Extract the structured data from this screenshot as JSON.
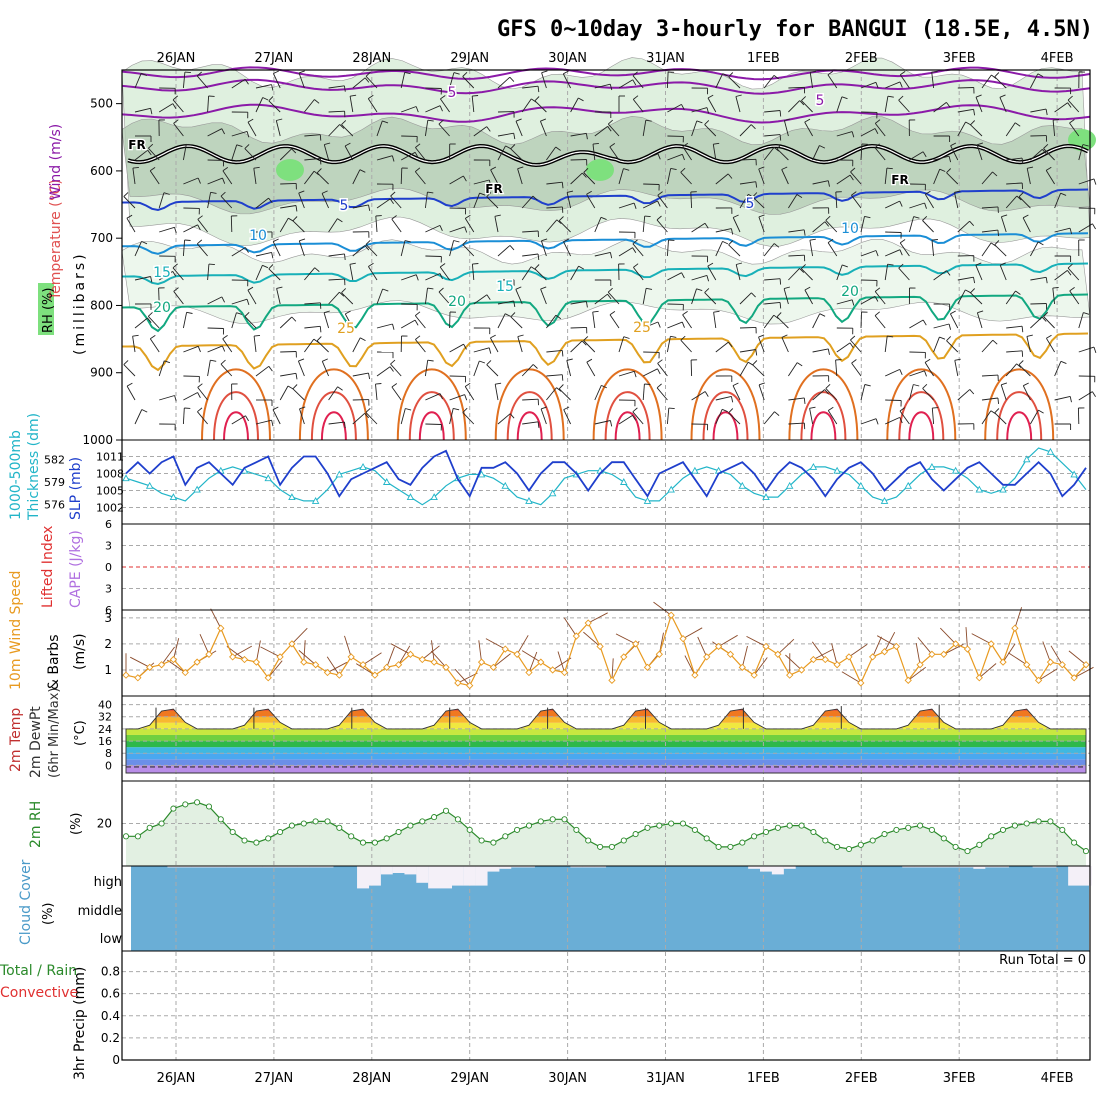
{
  "title": "GFS 0~10day 3-hourly for BANGUI (18.5E, 4.5N)",
  "dates": [
    "26JAN",
    "27JAN",
    "28JAN",
    "29JAN",
    "30JAN",
    "31JAN",
    "1FEB",
    "2FEB",
    "3FEB",
    "4FEB"
  ],
  "labels": {
    "upper": {
      "rh": "RH (%)",
      "temp": "Temperature (°C)",
      "wind": "Wind (m/s)",
      "pressure": "(millibars)",
      "fr": "FR"
    },
    "slp": {
      "thick1": "1000-500mb",
      "thick2": "Thickness (dm)",
      "slp": "SLP (mb)"
    },
    "cape": {
      "li": "Lifted Index",
      "cape": "CAPE (J/kg)"
    },
    "wind10": {
      "l1": "10m Wind Speed",
      "l2": "& Barbs",
      "unit": "(m/s)"
    },
    "temp2m": {
      "l1": "2m Temp",
      "l2": "2m DewPt",
      "l3": "(6hr Min/Max)",
      "unit": "(°C)"
    },
    "rh2m": {
      "l1": "2m RH",
      "unit": "(%)"
    },
    "cloud": {
      "l1": "Cloud Cover",
      "unit": "(%)",
      "high": "high",
      "middle": "middle",
      "low": "low"
    },
    "precip": {
      "l1": "Total / Rain",
      "l2": "Convective",
      "l3": "3hr Precip (mm)",
      "run_total": "Run Total = 0"
    }
  },
  "colors": {
    "wind_contour": "#8b1aa8",
    "freezing": "#000000",
    "slp": "#1f3fcc",
    "thickness": "#22b5c8",
    "wind10": "#e89a20",
    "rh2m": "#2b8a2b",
    "cloud": "#6aaed6",
    "rh_fill": "#7ee07e",
    "li": "#e03030",
    "cape": "#b070e0"
  },
  "chart_data": [
    {
      "type": "contour",
      "panel": "upper-air cross-section",
      "y_ticks": [
        500,
        600,
        700,
        800,
        900,
        1000
      ],
      "ylim": [
        1000,
        450
      ],
      "wind_contours": [
        5
      ],
      "temp_contours": [
        5,
        10,
        15,
        20,
        25
      ],
      "rh_contours": [
        30,
        60
      ]
    },
    {
      "type": "line",
      "panel": "slp-thickness",
      "slp_ticks": [
        1002,
        1005,
        1008,
        1011
      ],
      "thickness_ticks": [
        576,
        579,
        582
      ],
      "series": [
        {
          "name": "SLP (mb)",
          "values": [
            1008,
            1010,
            1008,
            1010,
            1011,
            1006,
            1009,
            1010,
            1008,
            1006,
            1009,
            1010,
            1011,
            1006,
            1009,
            1011,
            1011,
            1008,
            1004,
            1007,
            1008,
            1009,
            1010,
            1007,
            1006,
            1009,
            1011,
            1012,
            1007,
            1004,
            1009,
            1009,
            1010,
            1008,
            1005,
            1008,
            1010,
            1010,
            1008,
            1005,
            1008,
            1010,
            1010,
            1007,
            1004,
            1008,
            1009,
            1010,
            1007,
            1004,
            1008,
            1009,
            1010,
            1008,
            1005,
            1008,
            1010,
            1009,
            1007,
            1004,
            1007,
            1009,
            1010,
            1008,
            1005,
            1007,
            1009,
            1010,
            1007,
            1005,
            1007,
            1009,
            1010,
            1008,
            1006,
            1006,
            1008,
            1010,
            1008,
            1004,
            1006,
            1009
          ]
        },
        {
          "name": "1000-500mb Thickness (dm)",
          "values": [
            579.5,
            579.0,
            578.5,
            577.5,
            577.0,
            576.5,
            578.0,
            579.5,
            580.5,
            581.0,
            580.5,
            580.0,
            579.5,
            578.0,
            577.0,
            576.5,
            576.5,
            578.0,
            580.0,
            580.5,
            581.0,
            580.5,
            579.0,
            578.0,
            577.0,
            576.0,
            577.0,
            578.5,
            579.5,
            580.0,
            580.0,
            579.5,
            578.5,
            577.0,
            576.5,
            576.0,
            577.5,
            579.5,
            580.0,
            580.5,
            580.5,
            580.0,
            579.0,
            577.0,
            576.5,
            576.5,
            578.0,
            579.5,
            580.5,
            581.0,
            580.5,
            580.0,
            578.5,
            577.5,
            577.0,
            577.0,
            578.5,
            580.0,
            581.0,
            581.0,
            580.5,
            580.0,
            578.5,
            577.0,
            576.5,
            577.0,
            578.5,
            580.0,
            581.0,
            581.0,
            580.5,
            579.5,
            578.0,
            577.5,
            578.0,
            579.5,
            582.0,
            583.5,
            583.0,
            581.5,
            580.0,
            578.0
          ]
        }
      ]
    },
    {
      "type": "line",
      "panel": "lifted-index-cape",
      "y_ticks": [
        6,
        3,
        0,
        -3,
        -6
      ],
      "ylim": [
        -6,
        6
      ],
      "reference_line": 0
    },
    {
      "type": "line",
      "panel": "10m wind speed",
      "y_ticks": [
        1,
        2,
        3
      ],
      "ylim": [
        0,
        3.3
      ],
      "series": [
        {
          "name": "10m Wind Speed",
          "values": [
            0.8,
            0.7,
            1.1,
            1.2,
            1.4,
            0.9,
            1.3,
            1.6,
            2.6,
            1.5,
            1.4,
            1.3,
            0.7,
            1.5,
            2.0,
            1.3,
            1.2,
            0.9,
            0.8,
            1.5,
            1.2,
            0.8,
            1.1,
            1.2,
            1.6,
            1.4,
            1.3,
            1.1,
            0.5,
            0.4,
            1.3,
            1.1,
            1.8,
            1.6,
            0.9,
            1.3,
            1.0,
            0.9,
            2.3,
            2.8,
            1.9,
            0.6,
            1.5,
            2.0,
            1.1,
            1.6,
            3.1,
            2.2,
            0.8,
            1.5,
            1.9,
            1.6,
            1.1,
            0.8,
            1.9,
            1.6,
            0.8,
            1.0,
            1.4,
            1.4,
            1.2,
            1.5,
            0.5,
            1.5,
            1.7,
            1.9,
            0.6,
            1.2,
            1.6,
            1.6,
            2.0,
            1.8,
            0.7,
            2.0,
            1.3,
            2.6,
            1.2,
            0.6,
            1.3,
            1.2,
            0.7,
            1.2
          ]
        }
      ]
    },
    {
      "type": "area",
      "panel": "2m temperature",
      "y_ticks": [
        0,
        8,
        16,
        24,
        32,
        40
      ],
      "ylim": [
        -5,
        43
      ],
      "daily_max": [
        38,
        38,
        38,
        38,
        38,
        38,
        38,
        39,
        40
      ],
      "daily_min": [
        24,
        24,
        24,
        24,
        24,
        24,
        24,
        24,
        24
      ],
      "dewpoint": -1
    },
    {
      "type": "area",
      "panel": "2m relative humidity",
      "y_ticks": [
        20
      ],
      "ylim": [
        0,
        40
      ],
      "series": [
        {
          "name": "2m RH",
          "values": [
            14,
            14,
            18,
            20,
            27,
            29,
            30,
            28,
            22,
            16,
            12,
            11,
            13,
            16,
            19,
            20,
            21,
            21,
            18,
            14,
            11,
            11,
            13,
            16,
            19,
            21,
            23,
            26,
            22,
            17,
            12,
            11,
            14,
            17,
            19,
            21,
            22,
            22,
            17,
            12,
            9,
            9,
            12,
            15,
            18,
            19,
            20,
            20,
            17,
            13,
            9,
            9,
            11,
            14,
            16,
            18,
            19,
            19,
            16,
            12,
            9,
            8,
            10,
            12,
            15,
            17,
            18,
            19,
            17,
            13,
            9,
            7,
            10,
            14,
            17,
            19,
            20,
            21,
            21,
            17,
            11,
            7
          ]
        }
      ]
    },
    {
      "type": "bar",
      "panel": "cloud cover",
      "levels": [
        "high",
        "middle",
        "low"
      ],
      "low_pct": 100,
      "middle_pct": 100,
      "high_pct": [
        100,
        100,
        100,
        100,
        95,
        95,
        95,
        95,
        95,
        95,
        95,
        95,
        95,
        95,
        95,
        95,
        95,
        95,
        100,
        100,
        20,
        30,
        70,
        75,
        70,
        40,
        20,
        20,
        30,
        30,
        30,
        80,
        90,
        95,
        95,
        100,
        100,
        100,
        95,
        95,
        95,
        100,
        100,
        100,
        100,
        100,
        100,
        100,
        100,
        100,
        100,
        100,
        100,
        90,
        80,
        70,
        90,
        100,
        100,
        100,
        100,
        100,
        100,
        100,
        100,
        100,
        95,
        95,
        95,
        95,
        95,
        95,
        90,
        95,
        95,
        100,
        100,
        95,
        95,
        100,
        30,
        30
      ]
    },
    {
      "type": "bar",
      "panel": "3hr precipitation",
      "y_ticks": [
        0,
        0.2,
        0.4,
        0.6,
        0.8
      ],
      "ylim": [
        0,
        0.95
      ],
      "run_total": 0
    }
  ]
}
